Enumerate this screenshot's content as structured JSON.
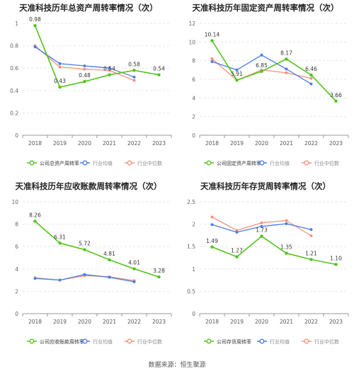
{
  "source_text": "数据来源：恒生聚源",
  "colors": {
    "company": "#52c41a",
    "avg": "#4a7ce8",
    "median": "#f5927a",
    "grid": "#e6e6e6",
    "axis": "#999999"
  },
  "chart_data": [
    {
      "type": "line",
      "title": "天准科技历年总资产周转率情况（次）",
      "x": [
        "2018",
        "2019",
        "2020",
        "2021",
        "2022",
        "2023"
      ],
      "ylim": [
        0,
        1
      ],
      "yticks": [
        "0",
        "0.2",
        "0.4",
        "0.6",
        "0.8",
        "1"
      ],
      "grid": true,
      "legend": "bottom",
      "series": [
        {
          "name": "公司总资产周转率",
          "values": [
            0.98,
            0.43,
            0.48,
            0.54,
            0.58,
            0.54
          ],
          "labels": [
            "0.98",
            "0.43",
            "0.48",
            "0.54",
            "0.58",
            "0.54"
          ]
        },
        {
          "name": "行业均值",
          "values": [
            0.79,
            0.64,
            0.62,
            0.6,
            0.52,
            null
          ]
        },
        {
          "name": "行业中位数",
          "values": [
            0.8,
            0.61,
            0.59,
            0.58,
            0.49,
            null
          ]
        }
      ]
    },
    {
      "type": "line",
      "title": "天准科技历年固定资产周转率情况（次）",
      "x": [
        "2018",
        "2019",
        "2020",
        "2021",
        "2022",
        "2023"
      ],
      "ylim": [
        0,
        12
      ],
      "yticks": [
        "0",
        "2",
        "4",
        "6",
        "8",
        "10",
        "12"
      ],
      "grid": true,
      "legend": "bottom",
      "series": [
        {
          "name": "公司固定资产周转率",
          "values": [
            10.14,
            5.91,
            6.85,
            8.17,
            6.46,
            3.66
          ],
          "labels": [
            "10.14",
            "5.91",
            "6.85",
            "8.17",
            "6.46",
            "3.66"
          ]
        },
        {
          "name": "行业均值",
          "values": [
            7.9,
            7.0,
            8.6,
            7.1,
            5.5,
            null
          ]
        },
        {
          "name": "行业中位数",
          "values": [
            8.2,
            5.9,
            7.0,
            6.7,
            6.1,
            null
          ]
        }
      ]
    },
    {
      "type": "line",
      "title": "天准科技历年应收账款周转率情况（次）",
      "x": [
        "2018",
        "2019",
        "2020",
        "2021",
        "2022",
        "2023"
      ],
      "ylim": [
        0,
        10
      ],
      "yticks": [
        "0",
        "2",
        "4",
        "6",
        "8",
        "10"
      ],
      "grid": true,
      "legend": "bottom",
      "series": [
        {
          "name": "公司应收账款周转率",
          "values": [
            8.26,
            6.31,
            5.72,
            4.81,
            4.01,
            3.28
          ],
          "labels": [
            "8.26",
            "6.31",
            "5.72",
            "4.81",
            "4.01",
            "3.28"
          ]
        },
        {
          "name": "行业均值",
          "values": [
            3.15,
            3.0,
            3.5,
            3.25,
            2.85,
            null
          ]
        },
        {
          "name": "行业中位数",
          "values": [
            3.2,
            3.0,
            3.4,
            3.3,
            2.95,
            null
          ]
        }
      ]
    },
    {
      "type": "line",
      "title": "天准科技历年存货周转率情况（次）",
      "x": [
        "2018",
        "2019",
        "2020",
        "2021",
        "2022",
        "2023"
      ],
      "ylim": [
        0,
        2.5
      ],
      "yticks": [
        "0",
        "0.5",
        "1",
        "1.5",
        "2",
        "2.5"
      ],
      "grid": true,
      "legend": "bottom",
      "series": [
        {
          "name": "公司存货周转率",
          "values": [
            1.49,
            1.27,
            1.73,
            1.35,
            1.21,
            1.1
          ],
          "labels": [
            "1.49",
            "1.27",
            "1.73",
            "1.35",
            "1.21",
            "1.10"
          ]
        },
        {
          "name": "行业均值",
          "values": [
            1.99,
            1.82,
            1.95,
            2.01,
            1.88,
            null
          ]
        },
        {
          "name": "行业中位数",
          "values": [
            2.16,
            1.86,
            2.03,
            2.08,
            1.74,
            null
          ]
        }
      ]
    }
  ]
}
